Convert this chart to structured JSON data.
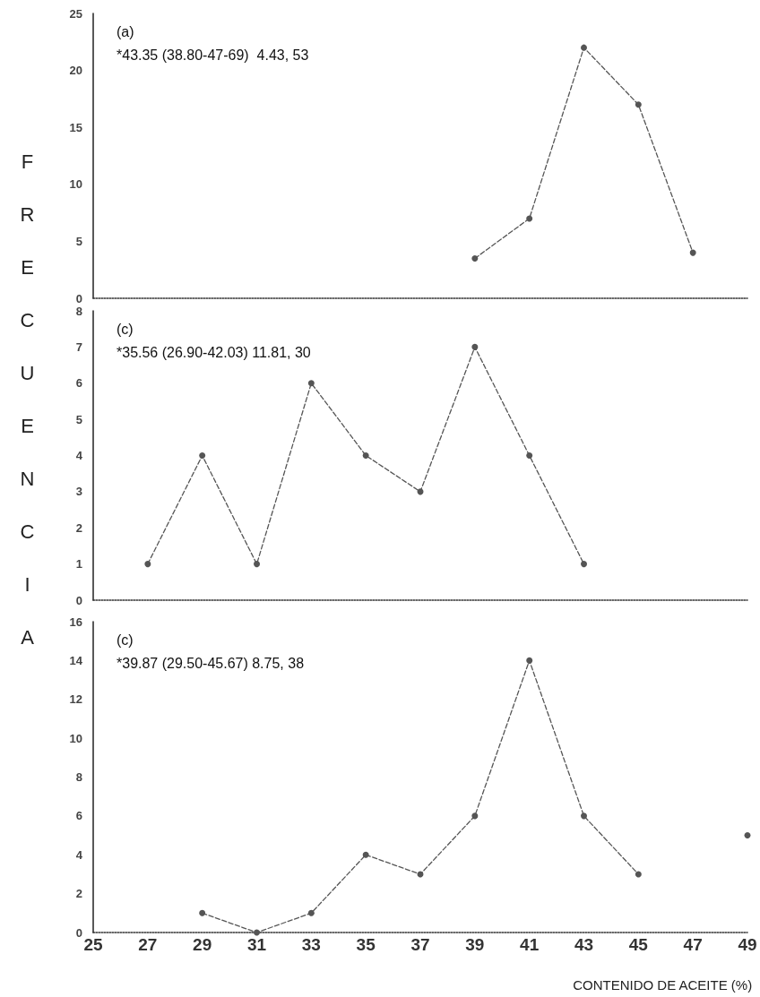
{
  "chart_data": [
    {
      "type": "line",
      "ylabel": "FRECUENCIA",
      "annotations": [
        "(a)",
        "*43.35 (38.80-47-69)  4.43, 53"
      ],
      "x": [
        39,
        41,
        43,
        45,
        47
      ],
      "values": [
        3.5,
        7,
        22,
        17,
        4
      ],
      "color": "#555555",
      "line_style": "dashed",
      "marker": "circle",
      "xlim": [
        25,
        49
      ],
      "xticks": [
        25,
        27,
        29,
        31,
        33,
        35,
        37,
        39,
        41,
        43,
        45,
        47,
        49
      ],
      "ylim": [
        0,
        25
      ],
      "yticks": [
        0,
        5,
        10,
        15,
        20,
        25
      ],
      "grid": false,
      "tick_labels": "y"
    },
    {
      "type": "line",
      "annotations": [
        "(c)",
        "*35.56 (26.90-42.03) 11.81, 30"
      ],
      "x": [
        27,
        29,
        31,
        33,
        35,
        37,
        39,
        41,
        43
      ],
      "values": [
        1,
        4,
        1,
        6,
        4,
        3,
        7,
        4,
        1
      ],
      "color": "#555555",
      "line_style": "dashed",
      "marker": "circle",
      "xlim": [
        25,
        49
      ],
      "xticks": [
        25,
        27,
        29,
        31,
        33,
        35,
        37,
        39,
        41,
        43,
        45,
        47,
        49
      ],
      "ylim": [
        0,
        8
      ],
      "yticks": [
        0,
        1,
        2,
        3,
        4,
        5,
        6,
        7,
        8
      ],
      "grid": false,
      "tick_labels": "y"
    },
    {
      "type": "line",
      "xlabel": "CONTENIDO DE ACEITE (%)",
      "annotations": [
        "(c)",
        "*39.87 (29.50-45.67) 8.75, 38"
      ],
      "x": [
        29,
        31,
        33,
        35,
        37,
        39,
        41,
        43,
        45,
        47,
        49
      ],
      "values": [
        1,
        0,
        1,
        4,
        3,
        6,
        14,
        6,
        3,
        null,
        5
      ],
      "color": "#555555",
      "line_style": "dashed",
      "marker": "circle",
      "xlim": [
        25,
        49
      ],
      "xticks": [
        25,
        27,
        29,
        31,
        33,
        35,
        37,
        39,
        41,
        43,
        45,
        47,
        49
      ],
      "ylim": [
        0,
        16
      ],
      "yticks": [
        0,
        2,
        4,
        6,
        8,
        10,
        12,
        14,
        16
      ],
      "grid": false
    }
  ]
}
